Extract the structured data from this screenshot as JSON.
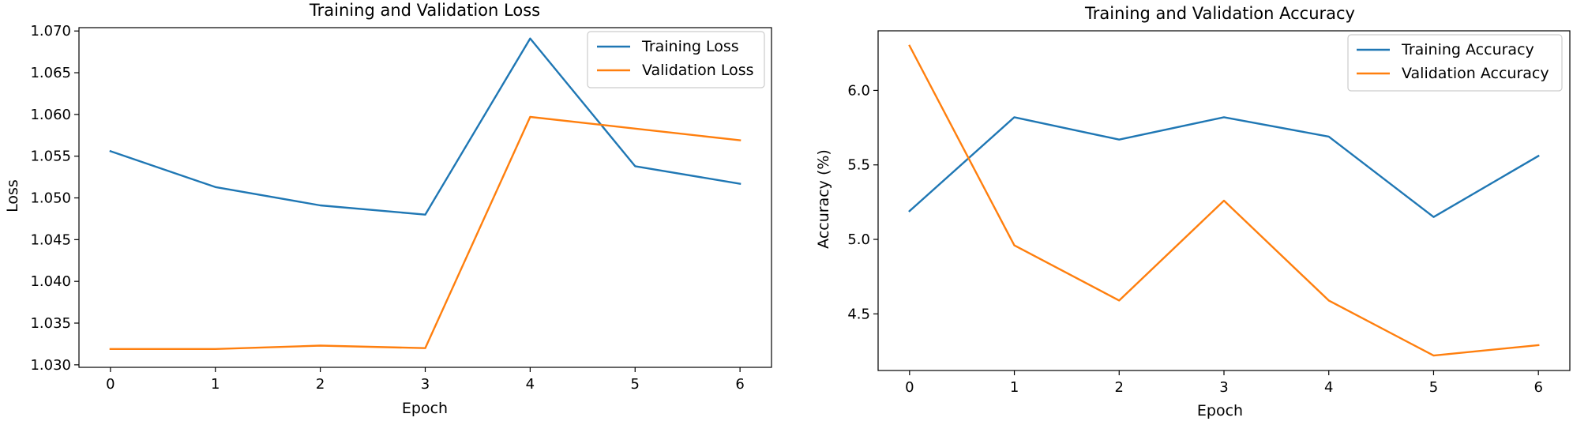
{
  "chart_data": [
    {
      "type": "line",
      "title": "Training and Validation Loss",
      "xlabel": "Epoch",
      "ylabel": "Loss",
      "x": [
        0,
        1,
        2,
        3,
        4,
        5,
        6
      ],
      "xticks": [
        0,
        1,
        2,
        3,
        4,
        5,
        6
      ],
      "xlim": [
        -0.3,
        6.3
      ],
      "ylim": [
        1.0297,
        1.0704
      ],
      "yticks": [
        1.03,
        1.035,
        1.04,
        1.045,
        1.05,
        1.055,
        1.06,
        1.065,
        1.07
      ],
      "ytick_labels": [
        "1.030",
        "1.035",
        "1.040",
        "1.045",
        "1.050",
        "1.055",
        "1.060",
        "1.065",
        "1.070"
      ],
      "grid": false,
      "legend_position": "top-right",
      "series": [
        {
          "name": "Training Loss",
          "color": "#1f77b4",
          "values": [
            1.0556,
            1.0513,
            1.0491,
            1.048,
            1.0691,
            1.0538,
            1.0517
          ]
        },
        {
          "name": "Validation Loss",
          "color": "#ff7f0e",
          "values": [
            1.0319,
            1.0319,
            1.0323,
            1.032,
            1.0597,
            1.0583,
            1.0569
          ]
        }
      ]
    },
    {
      "type": "line",
      "title": "Training and Validation Accuracy",
      "xlabel": "Epoch",
      "ylabel": "Accuracy (%)",
      "x": [
        0,
        1,
        2,
        3,
        4,
        5,
        6
      ],
      "xticks": [
        0,
        1,
        2,
        3,
        4,
        5,
        6
      ],
      "xlim": [
        -0.3,
        6.3
      ],
      "ylim": [
        4.12,
        6.4
      ],
      "yticks": [
        4.5,
        5.0,
        5.5,
        6.0
      ],
      "ytick_labels": [
        "4.5",
        "5.0",
        "5.5",
        "6.0"
      ],
      "grid": false,
      "legend_position": "top-right",
      "series": [
        {
          "name": "Training Accuracy",
          "color": "#1f77b4",
          "values": [
            5.19,
            5.82,
            5.67,
            5.82,
            5.69,
            5.15,
            5.56
          ]
        },
        {
          "name": "Validation Accuracy",
          "color": "#ff7f0e",
          "values": [
            6.3,
            4.96,
            4.59,
            5.26,
            4.59,
            4.22,
            4.29
          ]
        }
      ]
    }
  ]
}
